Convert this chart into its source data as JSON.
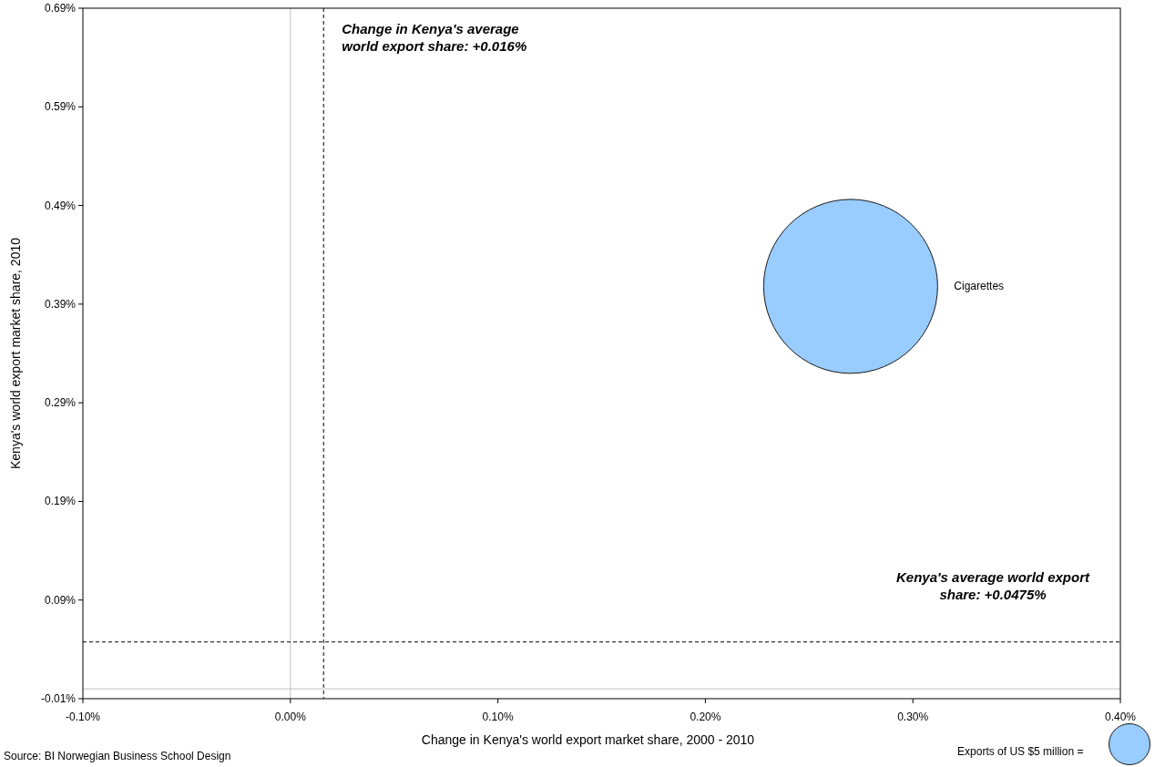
{
  "chart_data": {
    "type": "bubble",
    "xlabel": "Change in Kenya's world export market share, 2000 - 2010",
    "ylabel": "Kenya's world export market share, 2010",
    "series": [
      {
        "name": "Cigarettes",
        "color": "#99ccff",
        "x": [
          0.27
        ],
        "values": [
          0.408
        ],
        "sizes": [
          90
        ]
      }
    ],
    "size_legend": [
      {
        "value": 5,
        "label": "Exports of US $5 million ="
      }
    ],
    "xlim": [
      -0.1,
      0.4
    ],
    "xticks": [
      {
        "value": -0.1,
        "label": "-0.10%"
      },
      {
        "value": 0,
        "label": "0.00%"
      },
      {
        "value": 0.1,
        "label": "0.10%"
      },
      {
        "value": 0.2,
        "label": "0.20%"
      },
      {
        "value": 0.3,
        "label": "0.30%"
      },
      {
        "value": 0.4,
        "label": "0.40%"
      }
    ],
    "ylim": [
      -0.01,
      0.69
    ],
    "yticks": [
      {
        "value": -0.01,
        "label": "-0.01%"
      },
      {
        "value": 0.09,
        "label": "0.09%"
      },
      {
        "value": 0.19,
        "label": "0.19%"
      },
      {
        "value": 0.29,
        "label": "0.29%"
      },
      {
        "value": 0.39,
        "label": "0.39%"
      },
      {
        "value": 0.49,
        "label": "0.49%"
      },
      {
        "value": 0.59,
        "label": "0.59%"
      },
      {
        "value": 0.69,
        "label": "0.69%"
      }
    ],
    "ref_lines": [
      {
        "axis": "x",
        "value": 0,
        "color": "#c0c0c0",
        "line_style": "solid"
      },
      {
        "axis": "y",
        "value": 0,
        "color": "#c0c0c0",
        "line_style": "solid"
      },
      {
        "axis": "x",
        "value": 0.016,
        "label": "Change in Kenya's average world export share: +0.016%",
        "color": "#000000",
        "line_style": "dashed"
      },
      {
        "axis": "y",
        "value": 0.0475,
        "label": "Kenya's average world export share: +0.0475%",
        "color": "#000000",
        "line_style": "dashed"
      }
    ],
    "annotations": [
      "Source: BI Norwegian Business School Design"
    ]
  }
}
